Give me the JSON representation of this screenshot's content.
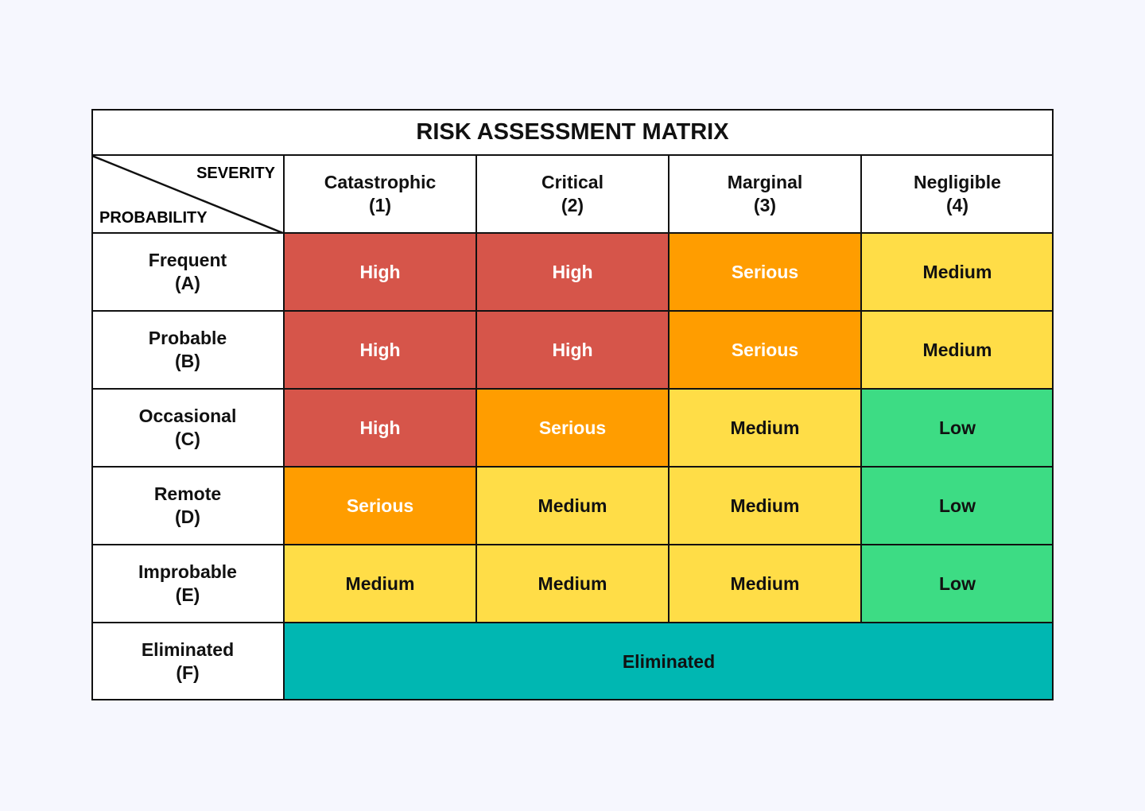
{
  "title": "RISK ASSESSMENT MATRIX",
  "corner": {
    "top_label": "SEVERITY",
    "bottom_label": "PROBABILITY"
  },
  "columns": [
    {
      "name": "Catastrophic",
      "code": "(1)"
    },
    {
      "name": "Critical",
      "code": "(2)"
    },
    {
      "name": "Marginal",
      "code": "(3)"
    },
    {
      "name": "Negligible",
      "code": "(4)"
    }
  ],
  "rows": [
    {
      "name": "Frequent",
      "code": "(A)",
      "cells": [
        "High",
        "High",
        "Serious",
        "Medium"
      ]
    },
    {
      "name": "Probable",
      "code": "(B)",
      "cells": [
        "High",
        "High",
        "Serious",
        "Medium"
      ]
    },
    {
      "name": "Occasional",
      "code": "(C)",
      "cells": [
        "High",
        "Serious",
        "Medium",
        "Low"
      ]
    },
    {
      "name": "Remote",
      "code": "(D)",
      "cells": [
        "Serious",
        "Medium",
        "Medium",
        "Low"
      ]
    },
    {
      "name": "Improbable",
      "code": "(E)",
      "cells": [
        "Medium",
        "Medium",
        "Medium",
        "Low"
      ]
    }
  ],
  "eliminated_row": {
    "name": "Eliminated",
    "code": "(F)",
    "value": "Eliminated"
  },
  "level_colors": {
    "High": "#D6554A",
    "Serious": "#FF9D00",
    "Medium": "#FFDD47",
    "Low": "#3DDC84",
    "Eliminated": "#00B7B2"
  },
  "light_text_levels": [
    "High",
    "Serious"
  ]
}
